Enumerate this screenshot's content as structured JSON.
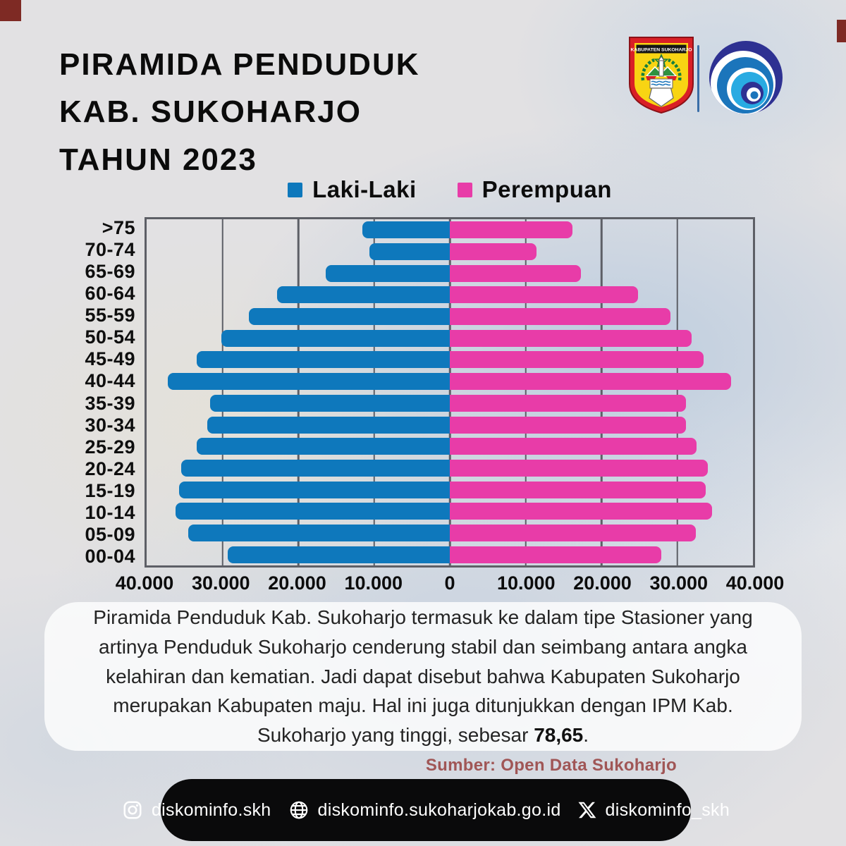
{
  "title": {
    "lines": [
      "PIRAMIDA PENDUDUK",
      "KAB. SUKOHARJO",
      "TAHUN 2023"
    ]
  },
  "logos": {
    "crest_text": "KABUPATEN SUKOHARJO",
    "kominfo_alt": "kominfo-logo"
  },
  "legend": [
    {
      "label": "Laki-Laki",
      "color": "#0e78bc"
    },
    {
      "label": "Perempuan",
      "color": "#e83ca8"
    }
  ],
  "chart_data": {
    "type": "bar",
    "subtype": "population-pyramid",
    "categories": [
      ">75",
      "70-74",
      "65-69",
      "60-64",
      "55-59",
      "50-54",
      "45-49",
      "40-44",
      "35-39",
      "30-34",
      "25-29",
      "20-24",
      "15-19",
      "10-14",
      "05-09",
      "00-04"
    ],
    "series": [
      {
        "name": "Laki-Laki",
        "side": "left",
        "color": "#0e78bc",
        "values": [
          11500,
          10600,
          16400,
          22800,
          26500,
          30100,
          33400,
          37200,
          31600,
          32000,
          33400,
          35400,
          35700,
          36200,
          34500,
          29300
        ]
      },
      {
        "name": "Perempuan",
        "side": "right",
        "color": "#e83ca8",
        "values": [
          16200,
          11400,
          17300,
          24800,
          29100,
          31900,
          33500,
          37100,
          31200,
          31200,
          32600,
          34000,
          33800,
          34600,
          32500,
          27900
        ]
      }
    ],
    "x_ticks": [
      "40.000",
      "30.000",
      "20.000",
      "10.000",
      "0",
      "10.000",
      "20.000",
      "30.000",
      "40.000"
    ],
    "axis_max_per_side": 40000,
    "grid": true,
    "legend_position": "top"
  },
  "description": {
    "text": "Piramida Penduduk Kab. Sukoharjo termasuk ke dalam tipe Stasioner yang artinya Penduduk Sukoharjo cenderung stabil dan seimbang antara angka kelahiran dan kematian. Jadi dapat disebut bahwa Kabupaten Sukoharjo merupakan Kabupaten maju. Hal ini juga ditunjukkan dengan IPM Kab. Sukoharjo yang tinggi, sebesar ",
    "ipm_value": "78,65",
    "suffix": "."
  },
  "source": "Sumber: Open Data Sukoharjo",
  "footer": {
    "items": [
      {
        "icon": "instagram",
        "label": "diskominfo.skh"
      },
      {
        "icon": "globe",
        "label": "diskominfo.sukoharjokab.go.id"
      },
      {
        "icon": "x",
        "label": "diskominfo_skh"
      }
    ]
  }
}
